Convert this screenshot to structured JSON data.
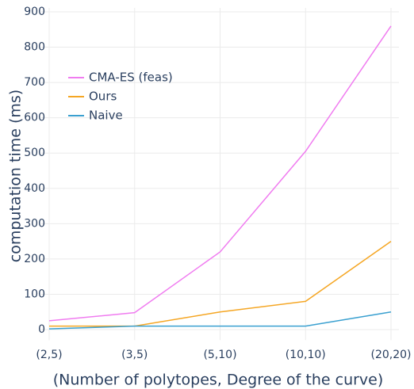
{
  "chart_data": {
    "type": "line",
    "x_label": "(Number of polytopes, Degree of the curve)",
    "y_label": "computation time (ms)",
    "categories": [
      "(2,5)",
      "(3,5)",
      "(5,10)",
      "(10,10)",
      "(20,20)"
    ],
    "series": [
      {
        "name": "CMA-ES (feas)",
        "color": "#f07cf0",
        "values": [
          25,
          48,
          220,
          505,
          860
        ]
      },
      {
        "name": "Ours",
        "color": "#f5a623",
        "values": [
          10,
          10,
          50,
          80,
          250
        ]
      },
      {
        "name": "Naive",
        "color": "#3aa0d0",
        "values": [
          2,
          10,
          10,
          10,
          50
        ]
      }
    ],
    "ylim": [
      -30,
      900
    ],
    "yticks": [
      0,
      100,
      200,
      300,
      400,
      500,
      600,
      700,
      800,
      900
    ],
    "grid": true,
    "legend": "top-left"
  }
}
